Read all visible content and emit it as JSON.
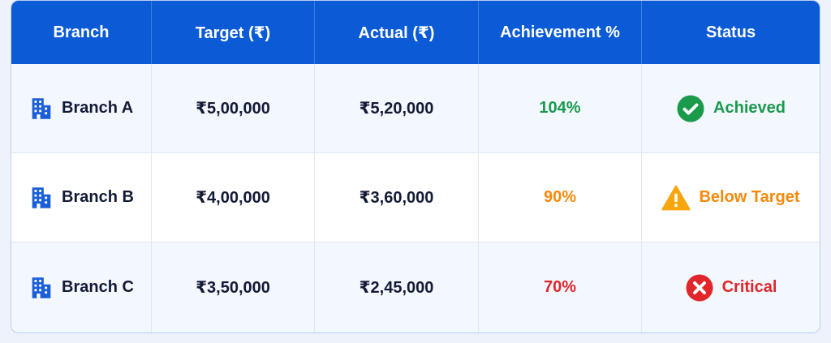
{
  "table": {
    "headers": [
      "Branch",
      "Target (₹)",
      "Actual (₹)",
      "Achievement %",
      "Status"
    ],
    "rows": [
      [
        "Branch A",
        "₹5,00,000",
        "₹5,20,000",
        "104%",
        "Achieved"
      ],
      [
        "Branch B",
        "₹4,00,000",
        "₹3,60,000",
        "90%",
        "Below Target"
      ],
      [
        "Branch C",
        "₹3,50,000",
        "₹2,45,000",
        "70%",
        "Critical"
      ]
    ]
  }
}
